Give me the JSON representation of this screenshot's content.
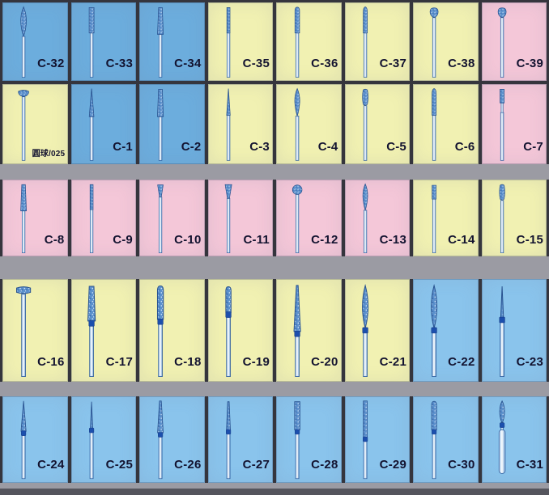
{
  "palette": {
    "cell_blue": "#6caddd",
    "cell_blue_light": "#8ac4ec",
    "cell_yellow": "#f1f1b2",
    "cell_pink": "#f4c7d8",
    "gap_dark": "#35353d",
    "band_gray": "#9b9ba3",
    "bottom_dark": "#55555d",
    "label_color": "#131330",
    "bur_head_blue": "#5b90cc",
    "bur_outline_blue": "#27508d",
    "bur_collar_blue": "#1c4fad"
  },
  "rows": [
    {
      "name": "bur-row-1",
      "cells": [
        {
          "label": "C-32",
          "bg": "blue",
          "bur": "flame-large"
        },
        {
          "label": "C-33",
          "bg": "blue",
          "bur": "cylinder"
        },
        {
          "label": "C-34",
          "bg": "blue",
          "bur": "taper-cyl"
        },
        {
          "label": "C-35",
          "bg": "yellow",
          "bur": "cylinder-thin"
        },
        {
          "label": "C-36",
          "bg": "yellow",
          "bur": "cylinder-round"
        },
        {
          "label": "C-37",
          "bg": "yellow",
          "bur": "torpedo"
        },
        {
          "label": "C-38",
          "bg": "yellow",
          "bur": "acorn"
        },
        {
          "label": "C-39",
          "bg": "pink",
          "bur": "acorn"
        }
      ]
    },
    {
      "name": "bur-row-2",
      "cells": [
        {
          "label": "圆球/025",
          "bg": "yellow",
          "bur": "mushroom",
          "small_label": true
        },
        {
          "label": "C-1",
          "bg": "blue",
          "bur": "needle"
        },
        {
          "label": "C-2",
          "bg": "blue",
          "bur": "taper-cyl"
        },
        {
          "label": "C-3",
          "bg": "yellow",
          "bur": "needle-thin"
        },
        {
          "label": "C-4",
          "bg": "yellow",
          "bur": "flame"
        },
        {
          "label": "C-5",
          "bg": "yellow",
          "bur": "barrel"
        },
        {
          "label": "C-6",
          "bg": "yellow",
          "bur": "torpedo"
        },
        {
          "label": "C-7",
          "bg": "pink",
          "bur": "cyl-neck"
        }
      ]
    },
    {
      "name": "bur-row-3",
      "cells": [
        {
          "label": "C-8",
          "bg": "pink",
          "bur": "taper-cyl"
        },
        {
          "label": "C-9",
          "bg": "pink",
          "bur": "cylinder-thin"
        },
        {
          "label": "C-10",
          "bg": "pink",
          "bur": "inverted-cone"
        },
        {
          "label": "C-11",
          "bg": "pink",
          "bur": "inverted-cone-flat"
        },
        {
          "label": "C-12",
          "bg": "pink",
          "bur": "ball"
        },
        {
          "label": "C-13",
          "bg": "pink",
          "bur": "flame"
        },
        {
          "label": "C-14",
          "bg": "yellow",
          "bur": "small-cylinder"
        },
        {
          "label": "C-15",
          "bg": "yellow",
          "bur": "barrel"
        }
      ]
    },
    {
      "name": "bur-row-4",
      "cells": [
        {
          "label": "C-16",
          "bg": "yellow",
          "bur": "wheel"
        },
        {
          "label": "C-17",
          "bg": "yellow",
          "bur": "taper-cyl",
          "collar": true
        },
        {
          "label": "C-18",
          "bg": "yellow",
          "bur": "cylinder-round",
          "collar": true
        },
        {
          "label": "C-19",
          "bg": "yellow",
          "bur": "cylinder-round-small",
          "collar": true
        },
        {
          "label": "C-20",
          "bg": "yellow",
          "bur": "taper-long",
          "collar": true
        },
        {
          "label": "C-21",
          "bg": "yellow",
          "bur": "flame-long",
          "collar": true
        },
        {
          "label": "C-22",
          "bg": "blue_light",
          "bur": "flame-long",
          "collar": true
        },
        {
          "label": "C-23",
          "bg": "blue_light",
          "bur": "needle-fine",
          "collar": true
        }
      ]
    },
    {
      "name": "bur-row-5",
      "cells": [
        {
          "label": "C-24",
          "bg": "blue_light",
          "bur": "needle",
          "collar": true
        },
        {
          "label": "C-25",
          "bg": "blue_light",
          "bur": "needle-fine",
          "collar": true
        },
        {
          "label": "C-26",
          "bg": "blue_light",
          "bur": "taper-point",
          "collar": true
        },
        {
          "label": "C-27",
          "bg": "blue_light",
          "bur": "taper-thin",
          "collar": true
        },
        {
          "label": "C-28",
          "bg": "blue_light",
          "bur": "cylinder",
          "collar": true
        },
        {
          "label": "C-29",
          "bg": "blue_light",
          "bur": "cylinder-long",
          "collar": true
        },
        {
          "label": "C-30",
          "bg": "blue_light",
          "bur": "cylinder-round",
          "collar": true
        },
        {
          "label": "C-31",
          "bg": "blue_light",
          "bur": "flame-latch",
          "collar": true
        }
      ]
    }
  ]
}
